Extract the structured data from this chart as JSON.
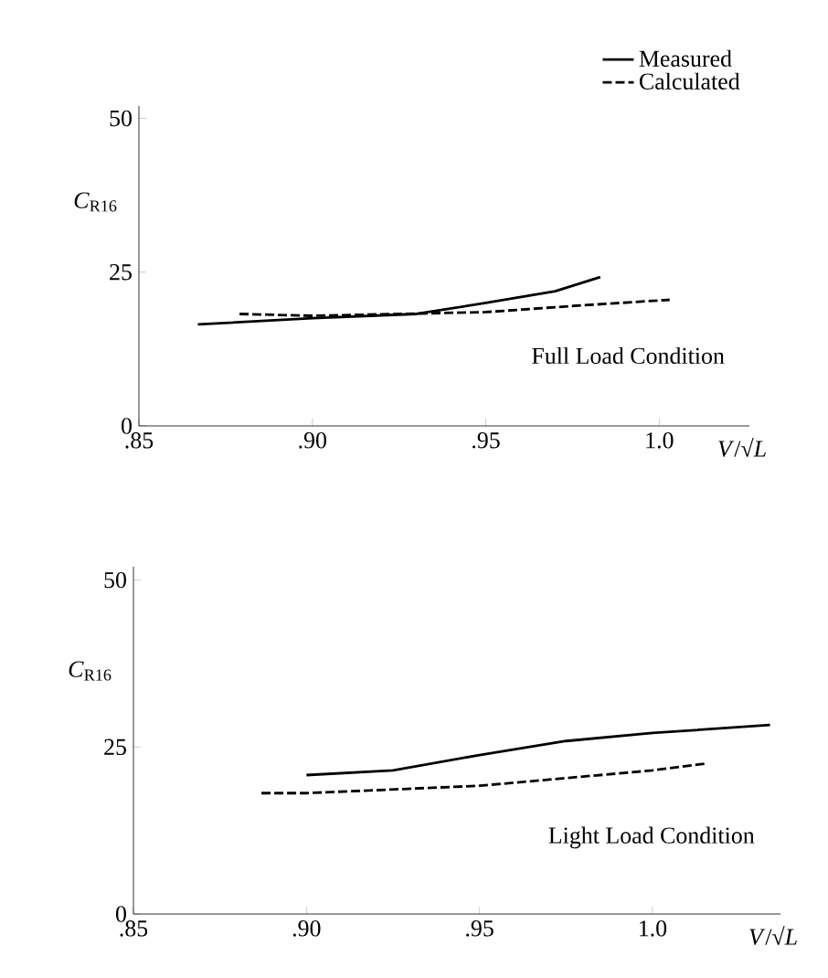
{
  "chart_data": [
    {
      "type": "line",
      "xlabel": "*V*/√*L*",
      "ylabel": "*C*$_{R16}$",
      "annotations": [
        "Full Load Condition"
      ],
      "xlim": [
        0.85,
        1.026
      ],
      "ylim": [
        0,
        52
      ],
      "xticks": [
        {
          "value": 0.85,
          "label": ".85"
        },
        {
          "value": 0.9,
          "label": ".90"
        },
        {
          "value": 0.95,
          "label": ".95"
        },
        {
          "value": 1.0,
          "label": "1.0"
        }
      ],
      "yticks": [
        0,
        25,
        50
      ],
      "legend": "top right",
      "grid": false,
      "series": [
        {
          "name": "Measured",
          "color": "#000000",
          "line_style": "solid",
          "x": [
            0.867,
            0.9,
            0.93,
            0.95,
            0.97,
            0.983
          ],
          "values": [
            16.5,
            17.5,
            18.2,
            20.0,
            21.9,
            24.2
          ]
        },
        {
          "name": "Calculated",
          "color": "#000000",
          "line_style": "dashed",
          "x": [
            0.879,
            0.9,
            0.95,
            0.975,
            1.003
          ],
          "values": [
            18.2,
            17.9,
            18.5,
            19.5,
            20.5
          ]
        }
      ]
    },
    {
      "type": "line",
      "xlabel": "*V*/√*L*",
      "ylabel": "*C*$_{R16}$",
      "annotations": [
        "Light Load Condition"
      ],
      "xlim": [
        0.85,
        1.037
      ],
      "ylim": [
        0,
        52
      ],
      "xticks": [
        {
          "value": 0.85,
          "label": ".85"
        },
        {
          "value": 0.9,
          "label": ".90"
        },
        {
          "value": 0.95,
          "label": ".95"
        },
        {
          "value": 1.0,
          "label": "1.0"
        }
      ],
      "yticks": [
        0,
        25,
        50
      ],
      "grid": false,
      "series": [
        {
          "color": "#000000",
          "line_style": "solid",
          "x": [
            0.9,
            0.925,
            0.95,
            0.975,
            1.0,
            1.034
          ],
          "values": [
            20.8,
            21.5,
            23.8,
            25.9,
            27.1,
            28.3
          ]
        },
        {
          "color": "#000000",
          "line_style": "dashed",
          "x": [
            0.887,
            0.9,
            0.95,
            1.0,
            1.015
          ],
          "values": [
            18.1,
            18.1,
            19.2,
            21.5,
            22.5
          ]
        }
      ]
    }
  ]
}
